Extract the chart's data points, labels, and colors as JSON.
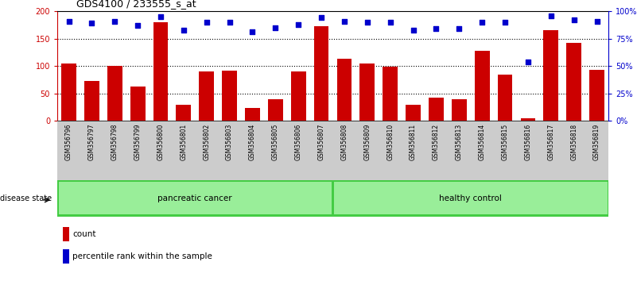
{
  "title": "GDS4100 / 233555_s_at",
  "samples": [
    "GSM356796",
    "GSM356797",
    "GSM356798",
    "GSM356799",
    "GSM356800",
    "GSM356801",
    "GSM356802",
    "GSM356803",
    "GSM356804",
    "GSM356805",
    "GSM356806",
    "GSM356807",
    "GSM356808",
    "GSM356809",
    "GSM356810",
    "GSM356811",
    "GSM356812",
    "GSM356813",
    "GSM356814",
    "GSM356815",
    "GSM356816",
    "GSM356817",
    "GSM356818",
    "GSM356819"
  ],
  "counts": [
    105,
    73,
    100,
    62,
    180,
    30,
    90,
    91,
    23,
    40,
    90,
    173,
    113,
    105,
    99,
    29,
    42,
    40,
    128,
    85,
    5,
    165,
    143,
    93
  ],
  "percentiles": [
    91,
    89,
    91,
    87,
    95,
    83,
    90,
    90,
    81,
    85,
    88,
    94,
    91,
    90,
    90,
    83,
    84,
    84,
    90,
    90,
    54,
    96,
    92,
    91
  ],
  "cancer_count": 12,
  "bar_color": "#cc0000",
  "dot_color": "#0000cc",
  "cancer_label": "pancreatic cancer",
  "control_label": "healthy control",
  "light_green": "#99ee99",
  "dark_green": "#44cc44",
  "xticklabel_bg": "#cccccc",
  "ylim_left": [
    0,
    200
  ],
  "ylim_right": [
    0,
    100
  ],
  "yticks_left": [
    0,
    50,
    100,
    150,
    200
  ],
  "ytick_labels_left": [
    "0",
    "50",
    "100",
    "150",
    "200"
  ],
  "yticks_right": [
    0,
    25,
    50,
    75,
    100
  ],
  "ytick_labels_right": [
    "0%",
    "25%",
    "50%",
    "75%",
    "100%"
  ],
  "legend_count_label": "count",
  "legend_pct_label": "percentile rank within the sample",
  "disease_state_label": "disease state",
  "bg_color": "#ffffff",
  "grid_yticks": [
    50,
    100,
    150
  ]
}
